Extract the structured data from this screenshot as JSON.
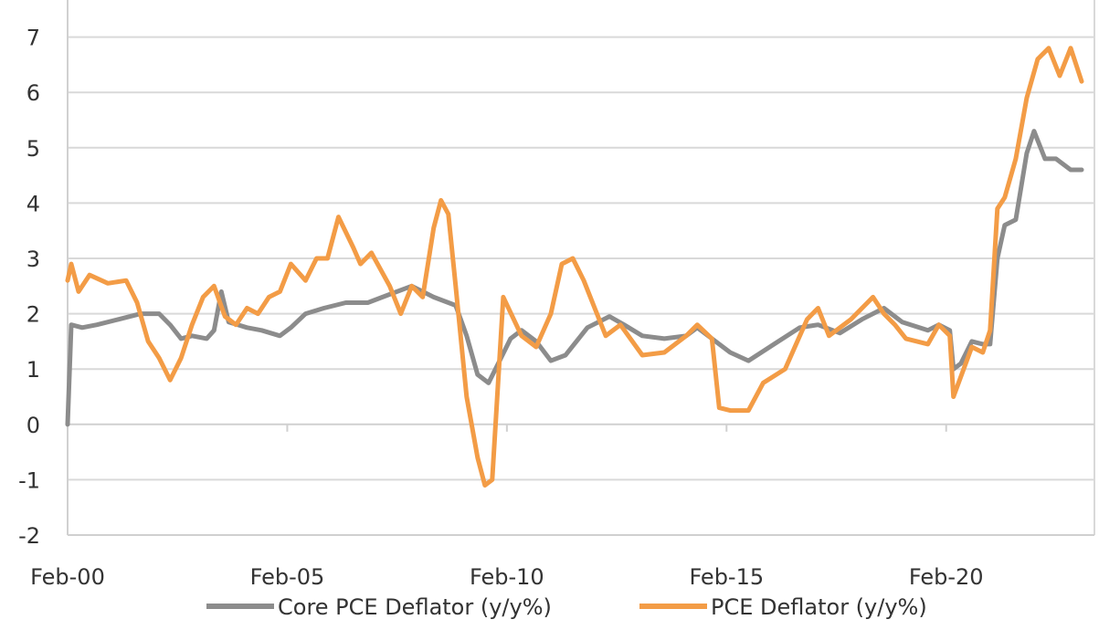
{
  "chart_data": {
    "type": "line",
    "title": "",
    "xlabel": "",
    "ylabel": "",
    "x_tick_labels": [
      "Feb-00",
      "Feb-05",
      "Feb-10",
      "Feb-15",
      "Feb-20"
    ],
    "x_range": [
      "2000-02",
      "2023-03"
    ],
    "ylim": [
      -2,
      7
    ],
    "y_ticks": [
      -2,
      -1,
      0,
      1,
      2,
      3,
      4,
      5,
      6,
      7
    ],
    "grid": true,
    "legend_position": "bottom",
    "series": [
      {
        "name": "Core PCE Deflator (y/y%)",
        "color": "#8c8c8c",
        "points": [
          [
            "2000-02",
            0.0
          ],
          [
            "2000-03",
            1.8
          ],
          [
            "2000-06",
            1.75
          ],
          [
            "2000-10",
            1.8
          ],
          [
            "2001-04",
            1.9
          ],
          [
            "2001-10",
            2.0
          ],
          [
            "2002-03",
            2.0
          ],
          [
            "2002-06",
            1.8
          ],
          [
            "2002-09",
            1.55
          ],
          [
            "2002-12",
            1.6
          ],
          [
            "2003-04",
            1.55
          ],
          [
            "2003-06",
            1.7
          ],
          [
            "2003-08",
            2.4
          ],
          [
            "2003-10",
            1.85
          ],
          [
            "2004-03",
            1.75
          ],
          [
            "2004-07",
            1.7
          ],
          [
            "2004-12",
            1.6
          ],
          [
            "2005-03",
            1.75
          ],
          [
            "2005-07",
            2.0
          ],
          [
            "2005-12",
            2.1
          ],
          [
            "2006-06",
            2.2
          ],
          [
            "2006-12",
            2.2
          ],
          [
            "2007-06",
            2.35
          ],
          [
            "2007-12",
            2.5
          ],
          [
            "2008-06",
            2.3
          ],
          [
            "2008-12",
            2.15
          ],
          [
            "2009-03",
            1.6
          ],
          [
            "2009-06",
            0.9
          ],
          [
            "2009-09",
            0.75
          ],
          [
            "2009-12",
            1.15
          ],
          [
            "2010-03",
            1.55
          ],
          [
            "2010-06",
            1.7
          ],
          [
            "2010-10",
            1.5
          ],
          [
            "2011-02",
            1.15
          ],
          [
            "2011-06",
            1.25
          ],
          [
            "2011-12",
            1.75
          ],
          [
            "2012-06",
            1.95
          ],
          [
            "2012-10",
            1.8
          ],
          [
            "2013-03",
            1.6
          ],
          [
            "2013-09",
            1.55
          ],
          [
            "2014-03",
            1.6
          ],
          [
            "2014-06",
            1.75
          ],
          [
            "2014-10",
            1.55
          ],
          [
            "2015-03",
            1.3
          ],
          [
            "2015-08",
            1.15
          ],
          [
            "2016-03",
            1.45
          ],
          [
            "2016-10",
            1.75
          ],
          [
            "2017-03",
            1.8
          ],
          [
            "2017-09",
            1.65
          ],
          [
            "2018-03",
            1.9
          ],
          [
            "2018-09",
            2.1
          ],
          [
            "2019-02",
            1.85
          ],
          [
            "2019-09",
            1.7
          ],
          [
            "2019-12",
            1.8
          ],
          [
            "2020-03",
            1.7
          ],
          [
            "2020-04",
            1.0
          ],
          [
            "2020-06",
            1.1
          ],
          [
            "2020-09",
            1.5
          ],
          [
            "2020-12",
            1.45
          ],
          [
            "2021-02",
            1.45
          ],
          [
            "2021-04",
            3.0
          ],
          [
            "2021-06",
            3.6
          ],
          [
            "2021-09",
            3.7
          ],
          [
            "2021-12",
            4.9
          ],
          [
            "2022-02",
            5.3
          ],
          [
            "2022-05",
            4.8
          ],
          [
            "2022-08",
            4.8
          ],
          [
            "2022-12",
            4.6
          ],
          [
            "2023-03",
            4.6
          ]
        ]
      },
      {
        "name": "PCE Deflator (y/y%)",
        "color": "#f39c46",
        "points": [
          [
            "2000-02",
            2.6
          ],
          [
            "2000-03",
            2.9
          ],
          [
            "2000-05",
            2.4
          ],
          [
            "2000-08",
            2.7
          ],
          [
            "2001-01",
            2.55
          ],
          [
            "2001-06",
            2.6
          ],
          [
            "2001-09",
            2.2
          ],
          [
            "2001-12",
            1.5
          ],
          [
            "2002-03",
            1.2
          ],
          [
            "2002-06",
            0.8
          ],
          [
            "2002-09",
            1.2
          ],
          [
            "2002-12",
            1.8
          ],
          [
            "2003-03",
            2.3
          ],
          [
            "2003-06",
            2.5
          ],
          [
            "2003-09",
            1.95
          ],
          [
            "2003-12",
            1.8
          ],
          [
            "2004-03",
            2.1
          ],
          [
            "2004-06",
            2.0
          ],
          [
            "2004-09",
            2.3
          ],
          [
            "2004-12",
            2.4
          ],
          [
            "2005-03",
            2.9
          ],
          [
            "2005-07",
            2.6
          ],
          [
            "2005-10",
            3.0
          ],
          [
            "2006-01",
            3.0
          ],
          [
            "2006-04",
            3.75
          ],
          [
            "2006-08",
            3.2
          ],
          [
            "2006-10",
            2.9
          ],
          [
            "2007-01",
            3.1
          ],
          [
            "2007-06",
            2.5
          ],
          [
            "2007-09",
            2.0
          ],
          [
            "2007-12",
            2.5
          ],
          [
            "2008-03",
            2.3
          ],
          [
            "2008-06",
            3.55
          ],
          [
            "2008-08",
            4.05
          ],
          [
            "2008-10",
            3.8
          ],
          [
            "2008-12",
            2.5
          ],
          [
            "2009-03",
            0.5
          ],
          [
            "2009-06",
            -0.6
          ],
          [
            "2009-08",
            -1.1
          ],
          [
            "2009-10",
            -1.0
          ],
          [
            "2010-01",
            2.3
          ],
          [
            "2010-06",
            1.6
          ],
          [
            "2010-10",
            1.4
          ],
          [
            "2011-02",
            2.0
          ],
          [
            "2011-05",
            2.9
          ],
          [
            "2011-08",
            3.0
          ],
          [
            "2011-11",
            2.6
          ],
          [
            "2012-02",
            2.1
          ],
          [
            "2012-05",
            1.6
          ],
          [
            "2012-09",
            1.8
          ],
          [
            "2013-03",
            1.25
          ],
          [
            "2013-09",
            1.3
          ],
          [
            "2014-03",
            1.6
          ],
          [
            "2014-06",
            1.8
          ],
          [
            "2014-10",
            1.55
          ],
          [
            "2014-12",
            0.3
          ],
          [
            "2015-03",
            0.25
          ],
          [
            "2015-08",
            0.25
          ],
          [
            "2015-12",
            0.75
          ],
          [
            "2016-06",
            1.0
          ],
          [
            "2016-12",
            1.9
          ],
          [
            "2017-03",
            2.1
          ],
          [
            "2017-06",
            1.6
          ],
          [
            "2017-12",
            1.9
          ],
          [
            "2018-06",
            2.3
          ],
          [
            "2018-09",
            2.0
          ],
          [
            "2018-12",
            1.8
          ],
          [
            "2019-03",
            1.55
          ],
          [
            "2019-09",
            1.45
          ],
          [
            "2019-12",
            1.8
          ],
          [
            "2020-03",
            1.6
          ],
          [
            "2020-04",
            0.5
          ],
          [
            "2020-09",
            1.4
          ],
          [
            "2020-12",
            1.3
          ],
          [
            "2021-02",
            1.7
          ],
          [
            "2021-04",
            3.9
          ],
          [
            "2021-06",
            4.1
          ],
          [
            "2021-09",
            4.8
          ],
          [
            "2021-12",
            5.9
          ],
          [
            "2022-03",
            6.6
          ],
          [
            "2022-06",
            6.8
          ],
          [
            "2022-09",
            6.3
          ],
          [
            "2022-12",
            6.8
          ],
          [
            "2023-03",
            6.2
          ]
        ]
      }
    ]
  }
}
